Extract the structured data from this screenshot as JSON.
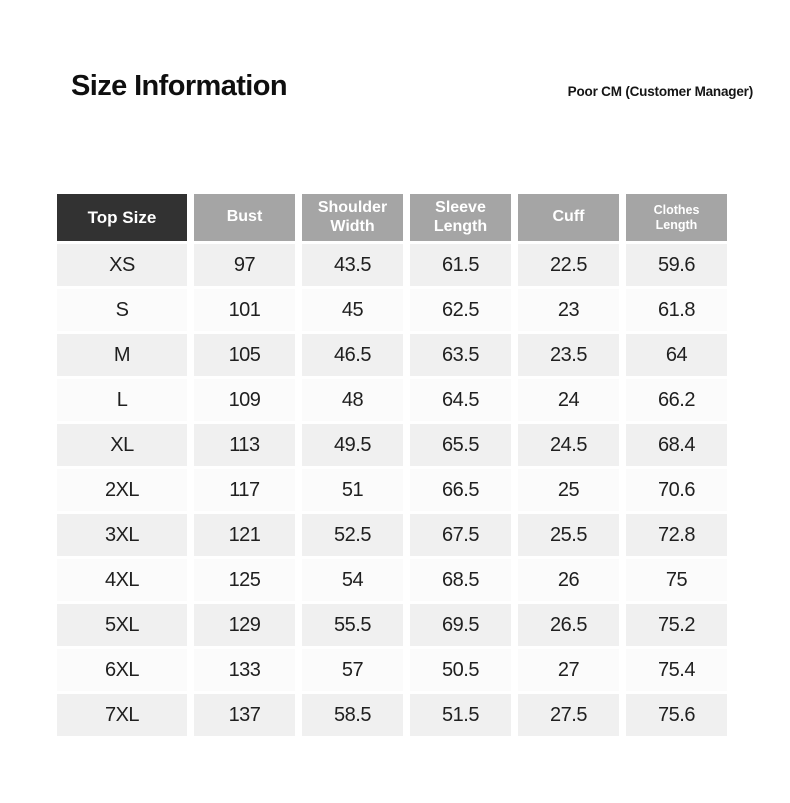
{
  "header": {
    "title": "Size Information",
    "right_label": "Poor CM (Customer Manager)"
  },
  "table": {
    "columns": [
      "Top Size",
      "Bust",
      "Shoulder\nWidth",
      "Sleeve\nLength",
      "Cuff",
      "Clothes\nLength"
    ],
    "rows": [
      {
        "size": "XS",
        "values": [
          "97",
          "43.5",
          "61.5",
          "22.5",
          "59.6"
        ]
      },
      {
        "size": "S",
        "values": [
          "101",
          "45",
          "62.5",
          "23",
          "61.8"
        ]
      },
      {
        "size": "M",
        "values": [
          "105",
          "46.5",
          "63.5",
          "23.5",
          "64"
        ]
      },
      {
        "size": "L",
        "values": [
          "109",
          "48",
          "64.5",
          "24",
          "66.2"
        ]
      },
      {
        "size": "XL",
        "values": [
          "113",
          "49.5",
          "65.5",
          "24.5",
          "68.4"
        ]
      },
      {
        "size": "2XL",
        "values": [
          "117",
          "51",
          "66.5",
          "25",
          "70.6"
        ]
      },
      {
        "size": "3XL",
        "values": [
          "121",
          "52.5",
          "67.5",
          "25.5",
          "72.8"
        ]
      },
      {
        "size": "4XL",
        "values": [
          "125",
          "54",
          "68.5",
          "26",
          "75"
        ]
      },
      {
        "size": "5XL",
        "values": [
          "129",
          "55.5",
          "69.5",
          "26.5",
          "75.2"
        ]
      },
      {
        "size": "6XL",
        "values": [
          "133",
          "57",
          "50.5",
          "27",
          "75.4"
        ]
      },
      {
        "size": "7XL",
        "values": [
          "137",
          "58.5",
          "51.5",
          "27.5",
          "75.6"
        ]
      }
    ]
  },
  "colors": {
    "header_dark_bg": "#323232",
    "header_gray_bg": "#a5a5a5",
    "header_text": "#ffffff",
    "row_odd_bg": "#f0f0f0",
    "row_even_bg": "#fbfbfb",
    "body_text": "#1f1f1f"
  }
}
